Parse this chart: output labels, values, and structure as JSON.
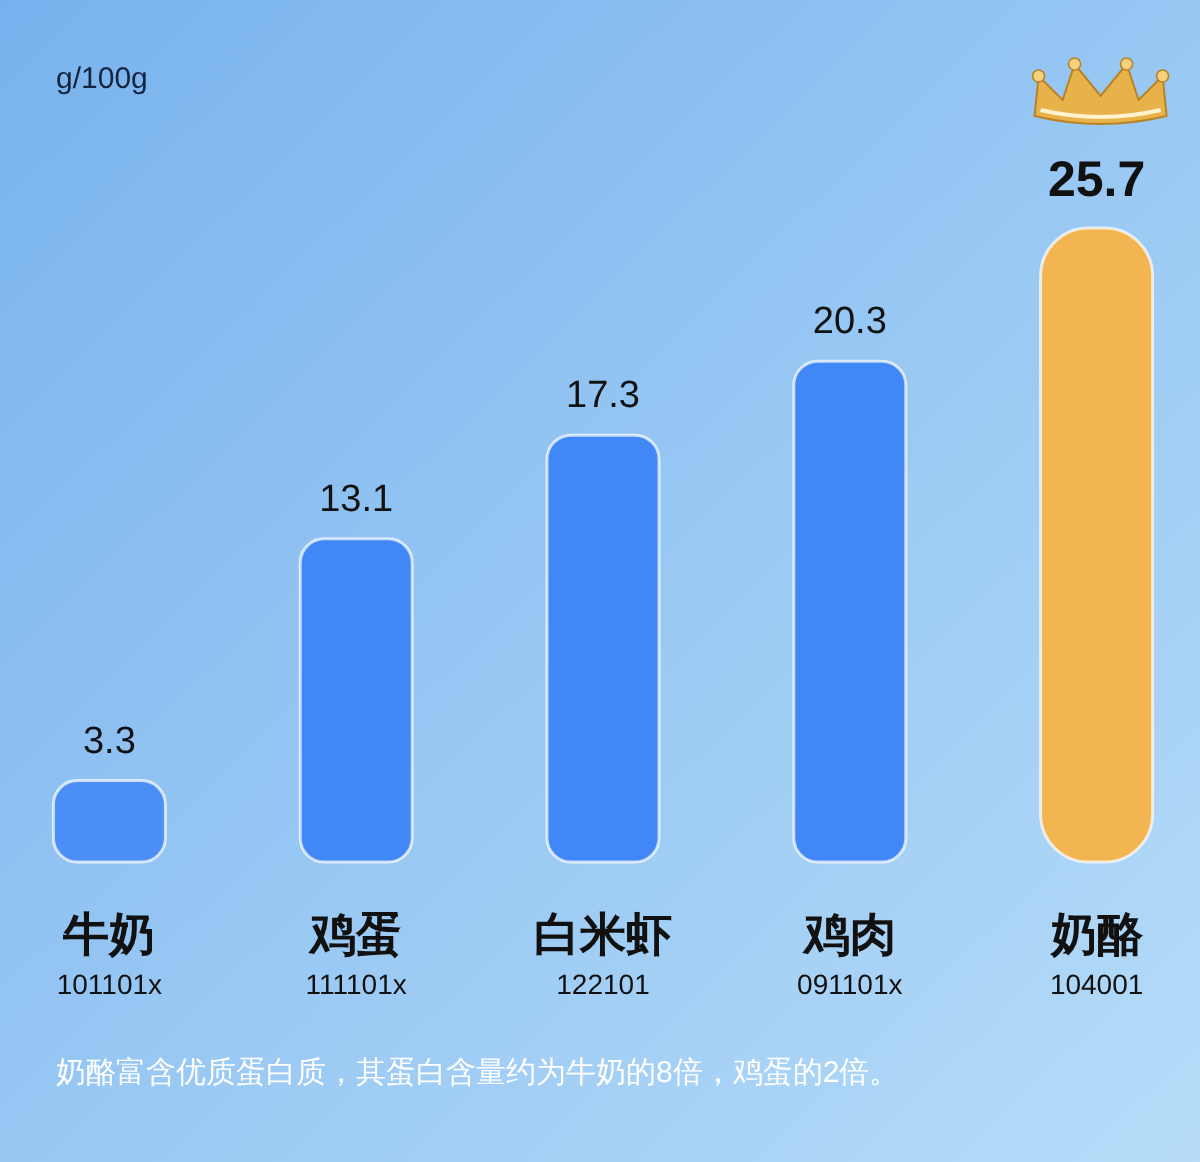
{
  "chart_data": {
    "type": "bar",
    "ylabel": "g/100g",
    "categories": [
      "牛奶\n101101x",
      "鸡蛋\n111101x",
      "白米虾\n122101",
      "鸡肉\n091101x",
      "奶酪\n104001"
    ],
    "values": [
      3.3,
      13.1,
      17.3,
      20.3,
      25.7
    ],
    "colors": [
      "#4a8ef6",
      "#4188f6",
      "#4188f6",
      "#4188f6",
      "#f2b552"
    ],
    "data_labels": true,
    "annotations": [
      "奶酪富含优质蛋白质，其蛋白含量约为牛奶的8倍，鸡蛋的2倍。"
    ]
  }
}
